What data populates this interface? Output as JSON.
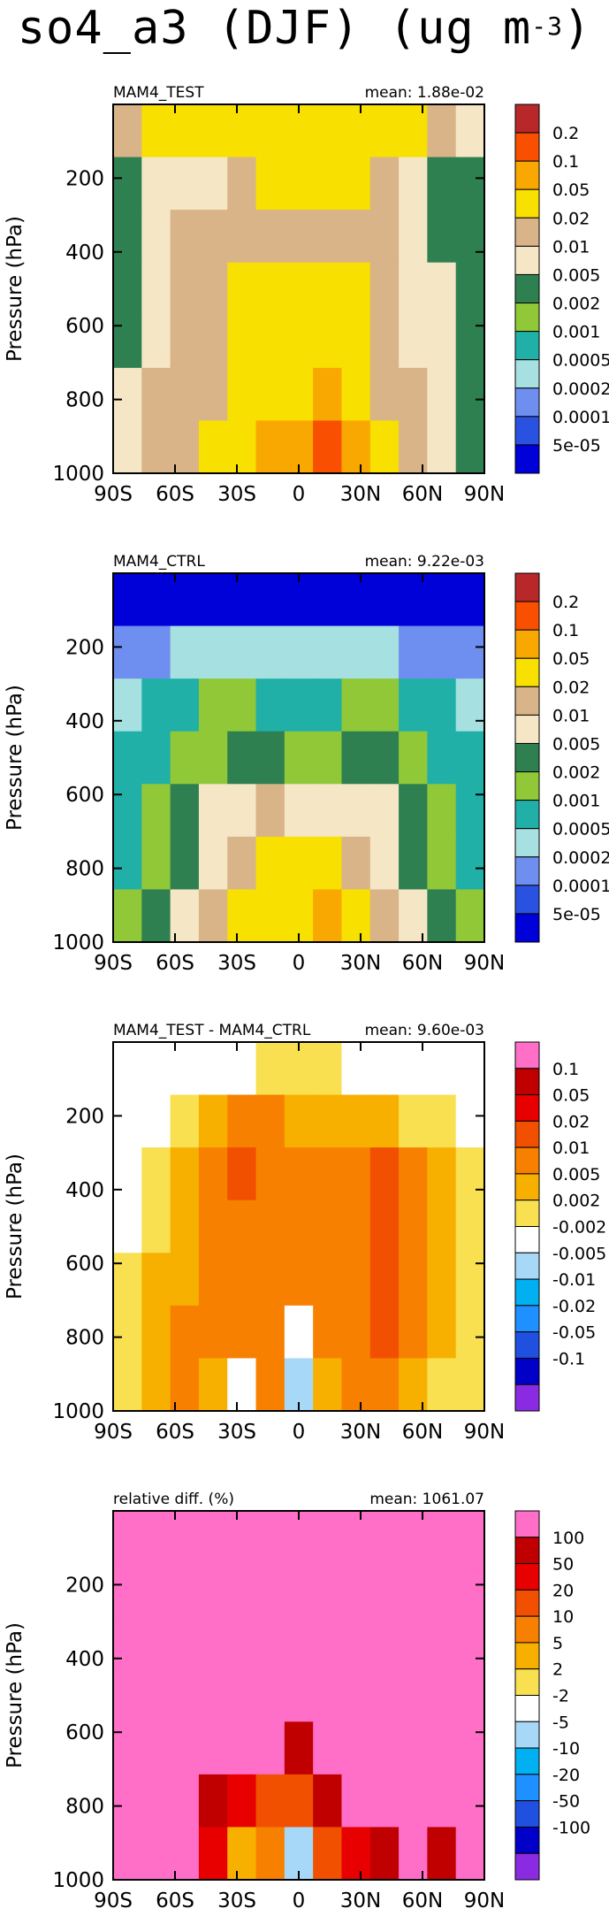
{
  "page": {
    "title_main": "so4_a3 (DJF) (ug m",
    "title_exp": "-3",
    "title_close": ")"
  },
  "chart_data": [
    {
      "type": "heatmap",
      "title_left": "MAM4_TEST",
      "title_right": "mean: 1.88e-02",
      "ylabel": "Pressure (hPa)",
      "xticks": [
        "90S",
        "60S",
        "30S",
        "0",
        "30N",
        "60N",
        "90N"
      ],
      "yticks": [
        "200",
        "400",
        "600",
        "800",
        "1000"
      ],
      "ytick_values": [
        200,
        400,
        600,
        800,
        1000
      ],
      "ylim": [
        1000,
        0
      ],
      "xlim": [
        -90,
        90
      ],
      "levels": [
        "0.2",
        "0.1",
        "0.05",
        "0.02",
        "0.01",
        "0.005",
        "0.002",
        "0.001",
        "0.0005",
        "0.0002",
        "0.0001",
        "5e-05"
      ],
      "colors": [
        "#0000d8",
        "#2a52e0",
        "#6e8ef0",
        "#a6e0e0",
        "#20b0a8",
        "#90c838",
        "#2e8050",
        "#f5e6c6",
        "#d8b488",
        "#f8e000",
        "#f8a800",
        "#f85000",
        "#b8282a"
      ],
      "field_x": [
        -90,
        -75,
        -60,
        -45,
        -30,
        -15,
        0,
        15,
        30,
        45,
        60,
        75,
        90
      ],
      "field_levels": [
        [
          8,
          9,
          9,
          9,
          9,
          9,
          9,
          9,
          9,
          9,
          9,
          8,
          7
        ],
        [
          6,
          7,
          7,
          7,
          8,
          9,
          9,
          9,
          9,
          8,
          7,
          6,
          6
        ],
        [
          6,
          7,
          8,
          8,
          8,
          8,
          8,
          8,
          8,
          8,
          7,
          6,
          6
        ],
        [
          6,
          7,
          8,
          8,
          9,
          9,
          9,
          9,
          9,
          8,
          7,
          7,
          6
        ],
        [
          6,
          7,
          8,
          8,
          9,
          9,
          9,
          9,
          9,
          8,
          7,
          7,
          6
        ],
        [
          7,
          8,
          8,
          8,
          9,
          9,
          9,
          10,
          9,
          8,
          8,
          7,
          6
        ],
        [
          7,
          8,
          8,
          9,
          9,
          10,
          10,
          11,
          10,
          9,
          8,
          7,
          6
        ]
      ]
    },
    {
      "type": "heatmap",
      "title_left": "MAM4_CTRL",
      "title_right": "mean: 9.22e-03",
      "ylabel": "Pressure (hPa)",
      "xticks": [
        "90S",
        "60S",
        "30S",
        "0",
        "30N",
        "60N",
        "90N"
      ],
      "yticks": [
        "200",
        "400",
        "600",
        "800",
        "1000"
      ],
      "ytick_values": [
        200,
        400,
        600,
        800,
        1000
      ],
      "ylim": [
        1000,
        0
      ],
      "xlim": [
        -90,
        90
      ],
      "levels": [
        "0.2",
        "0.1",
        "0.05",
        "0.02",
        "0.01",
        "0.005",
        "0.002",
        "0.001",
        "0.0005",
        "0.0002",
        "0.0001",
        "5e-05"
      ],
      "colors": [
        "#0000d8",
        "#2a52e0",
        "#6e8ef0",
        "#a6e0e0",
        "#20b0a8",
        "#90c838",
        "#2e8050",
        "#f5e6c6",
        "#d8b488",
        "#f8e000",
        "#f8a800",
        "#f85000",
        "#b8282a"
      ],
      "field_x": [
        -90,
        -75,
        -60,
        -45,
        -30,
        -15,
        0,
        15,
        30,
        45,
        60,
        75,
        90
      ],
      "field_levels": [
        [
          0,
          0,
          0,
          0,
          0,
          0,
          0,
          0,
          0,
          0,
          0,
          0,
          0
        ],
        [
          2,
          2,
          3,
          3,
          3,
          3,
          3,
          3,
          3,
          3,
          2,
          2,
          2
        ],
        [
          3,
          4,
          4,
          5,
          5,
          4,
          4,
          4,
          5,
          5,
          4,
          4,
          3
        ],
        [
          4,
          4,
          5,
          5,
          6,
          6,
          5,
          5,
          6,
          6,
          5,
          4,
          4
        ],
        [
          4,
          5,
          6,
          7,
          7,
          8,
          7,
          7,
          7,
          7,
          6,
          5,
          4
        ],
        [
          4,
          5,
          6,
          7,
          8,
          9,
          9,
          9,
          8,
          7,
          6,
          5,
          4
        ],
        [
          5,
          6,
          7,
          8,
          9,
          9,
          9,
          10,
          9,
          8,
          7,
          6,
          5
        ]
      ]
    },
    {
      "type": "heatmap",
      "title_left": "MAM4_TEST - MAM4_CTRL",
      "title_right": "mean: 9.60e-03",
      "ylabel": "Pressure (hPa)",
      "xticks": [
        "90S",
        "60S",
        "30S",
        "0",
        "30N",
        "60N",
        "90N"
      ],
      "yticks": [
        "200",
        "400",
        "600",
        "800",
        "1000"
      ],
      "ytick_values": [
        200,
        400,
        600,
        800,
        1000
      ],
      "ylim": [
        1000,
        0
      ],
      "xlim": [
        -90,
        90
      ],
      "levels": [
        "0.1",
        "0.05",
        "0.02",
        "0.01",
        "0.005",
        "0.002",
        "-0.002",
        "-0.005",
        "-0.01",
        "-0.02",
        "-0.05",
        "-0.1"
      ],
      "colors": [
        "#8a2be2",
        "#0000c8",
        "#2050e0",
        "#1e90ff",
        "#00b0f0",
        "#a8d8f8",
        "#ffffff",
        "#f8e050",
        "#f8b000",
        "#f88000",
        "#f05000",
        "#e80000",
        "#c00000",
        "#ff6ec7"
      ],
      "field_x": [
        -90,
        -75,
        -60,
        -45,
        -30,
        -15,
        0,
        15,
        30,
        45,
        60,
        75,
        90
      ],
      "field_levels": [
        [
          6,
          6,
          6,
          6,
          6,
          7,
          7,
          7,
          6,
          6,
          6,
          6,
          6
        ],
        [
          6,
          6,
          7,
          8,
          9,
          9,
          8,
          8,
          8,
          8,
          7,
          7,
          6
        ],
        [
          6,
          7,
          8,
          9,
          10,
          9,
          9,
          9,
          9,
          10,
          9,
          8,
          7
        ],
        [
          6,
          7,
          8,
          9,
          9,
          9,
          9,
          9,
          9,
          10,
          9,
          8,
          7
        ],
        [
          7,
          8,
          8,
          9,
          9,
          9,
          9,
          9,
          9,
          10,
          9,
          8,
          7
        ],
        [
          7,
          8,
          9,
          9,
          9,
          9,
          6,
          9,
          9,
          10,
          9,
          8,
          7
        ],
        [
          7,
          8,
          9,
          8,
          6,
          9,
          5,
          8,
          9,
          9,
          8,
          7,
          7
        ]
      ]
    },
    {
      "type": "heatmap",
      "title_left": "relative diff. (%)",
      "title_right": "mean: 1061.07",
      "ylabel": "Pressure (hPa)",
      "xticks": [
        "90S",
        "60S",
        "30S",
        "0",
        "30N",
        "60N",
        "90N"
      ],
      "yticks": [
        "200",
        "400",
        "600",
        "800",
        "1000"
      ],
      "ytick_values": [
        200,
        400,
        600,
        800,
        1000
      ],
      "ylim": [
        1000,
        0
      ],
      "xlim": [
        -90,
        90
      ],
      "levels": [
        "100",
        "50",
        "20",
        "10",
        "5",
        "2",
        "-2",
        "-5",
        "-10",
        "-20",
        "-50",
        "-100"
      ],
      "colors": [
        "#8a2be2",
        "#0000c8",
        "#2050e0",
        "#1e90ff",
        "#00b0f0",
        "#a8d8f8",
        "#ffffff",
        "#f8e050",
        "#f8b000",
        "#f88000",
        "#f05000",
        "#e80000",
        "#c00000",
        "#ff6ec7"
      ],
      "field_x": [
        -90,
        -75,
        -60,
        -45,
        -30,
        -15,
        0,
        15,
        30,
        45,
        60,
        75,
        90
      ],
      "field_levels": [
        [
          13,
          13,
          13,
          13,
          13,
          13,
          13,
          13,
          13,
          13,
          13,
          13,
          13
        ],
        [
          13,
          13,
          13,
          13,
          13,
          13,
          13,
          13,
          13,
          13,
          13,
          13,
          13
        ],
        [
          13,
          13,
          13,
          13,
          13,
          13,
          13,
          13,
          13,
          13,
          13,
          13,
          13
        ],
        [
          13,
          13,
          13,
          13,
          13,
          13,
          13,
          13,
          13,
          13,
          13,
          13,
          13
        ],
        [
          13,
          13,
          13,
          13,
          13,
          13,
          12,
          13,
          13,
          13,
          13,
          13,
          13
        ],
        [
          13,
          13,
          13,
          12,
          11,
          10,
          10,
          12,
          13,
          13,
          13,
          13,
          13
        ],
        [
          13,
          13,
          13,
          11,
          8,
          9,
          5,
          10,
          11,
          12,
          13,
          12,
          13
        ]
      ]
    }
  ]
}
